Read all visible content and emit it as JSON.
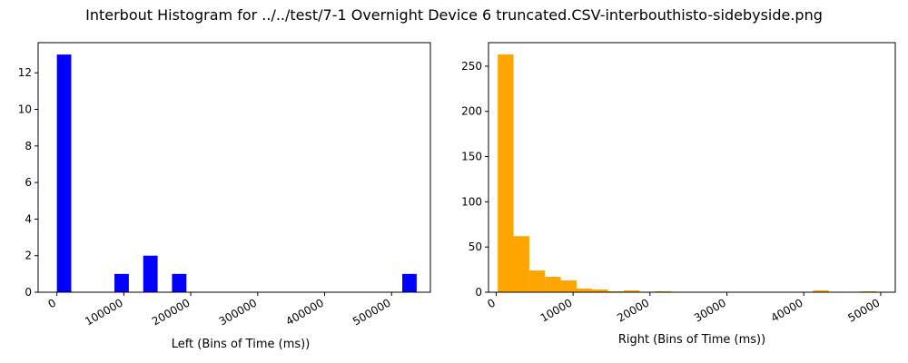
{
  "figure_title": "Interbout Histogram for ../../test/7-1 Overnight Device 6 truncated.CSV-interbouthisto-sidebyside.png",
  "chart_data": [
    {
      "type": "bar",
      "color": "#0000ff",
      "xlabel": "Left (Bins of Time (ms))",
      "ylabel": "",
      "xlim": [
        -28000,
        558000
      ],
      "ylim": [
        0,
        13.65
      ],
      "xticks": [
        0,
        100000,
        200000,
        300000,
        400000,
        500000
      ],
      "yticks": [
        0,
        2,
        4,
        6,
        8,
        10,
        12
      ],
      "bin_width": 21500,
      "bins": [
        {
          "x0": 0,
          "value": 13
        },
        {
          "x0": 86000,
          "value": 1
        },
        {
          "x0": 129000,
          "value": 2
        },
        {
          "x0": 172000,
          "value": 1
        },
        {
          "x0": 516000,
          "value": 1
        }
      ]
    },
    {
      "type": "bar",
      "color": "#ffa500",
      "xlabel": "Right (Bins of Time (ms))",
      "ylabel": "",
      "xlim": [
        -1000,
        51900
      ],
      "ylim": [
        0,
        276
      ],
      "xticks": [
        0,
        10000,
        20000,
        30000,
        40000,
        50000
      ],
      "yticks": [
        0,
        50,
        100,
        150,
        200,
        250
      ],
      "bin_width": 2050,
      "bins": [
        {
          "x0": 200,
          "value": 263
        },
        {
          "x0": 2250,
          "value": 62
        },
        {
          "x0": 4300,
          "value": 24
        },
        {
          "x0": 6350,
          "value": 17
        },
        {
          "x0": 8400,
          "value": 13
        },
        {
          "x0": 10450,
          "value": 4
        },
        {
          "x0": 12500,
          "value": 3
        },
        {
          "x0": 14550,
          "value": 1
        },
        {
          "x0": 16600,
          "value": 2
        },
        {
          "x0": 20700,
          "value": 1
        },
        {
          "x0": 41200,
          "value": 2
        },
        {
          "x0": 47350,
          "value": 1
        }
      ]
    }
  ]
}
